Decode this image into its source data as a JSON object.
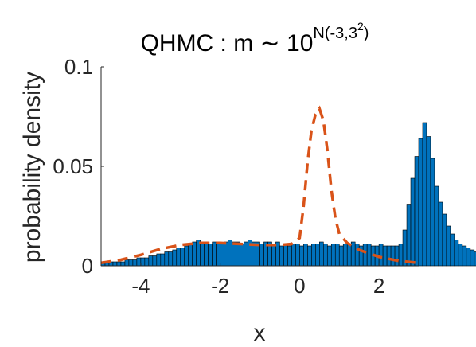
{
  "chart_data": {
    "type": "bar",
    "title": {
      "base": "QHMC : m ∼ 10",
      "superscript": "N(-3,3",
      "superscript_power": "2",
      "superscript_close": ")"
    },
    "xlabel": "x",
    "ylabel": "probability density",
    "xlim": [
      -5,
      3
    ],
    "ylim": [
      0,
      0.1
    ],
    "xticks": [
      -4,
      -2,
      0,
      2
    ],
    "xtick_labels": [
      "-4",
      "-2",
      "0",
      "2"
    ],
    "yticks": [
      0,
      0.05,
      0.1
    ],
    "ytick_labels": [
      "0",
      "0.05",
      "0.1"
    ],
    "grid": false,
    "bar_color": "#0072BD",
    "bar_edge_color": "#000000",
    "density_color": "#D95319",
    "density_style": "dashed",
    "bin_width": 0.1,
    "bin_start": -5,
    "histogram_values": [
      0.002,
      0.002,
      0.002,
      0.002,
      0.002,
      0.002,
      0.003,
      0.003,
      0.003,
      0.004,
      0.004,
      0.004,
      0.005,
      0.005,
      0.006,
      0.006,
      0.007,
      0.007,
      0.008,
      0.009,
      0.009,
      0.01,
      0.011,
      0.012,
      0.013,
      0.012,
      0.012,
      0.011,
      0.012,
      0.012,
      0.011,
      0.012,
      0.013,
      0.012,
      0.012,
      0.011,
      0.012,
      0.013,
      0.012,
      0.012,
      0.011,
      0.012,
      0.012,
      0.011,
      0.012,
      0.01,
      0.011,
      0.01,
      0.011,
      0.011,
      0.01,
      0.011,
      0.01,
      0.011,
      0.011,
      0.012,
      0.011,
      0.01,
      0.011,
      0.011,
      0.01,
      0.011,
      0.011,
      0.012,
      0.011,
      0.01,
      0.011,
      0.011,
      0.01,
      0.01,
      0.011,
      0.01,
      0.01,
      0.01,
      0.01,
      0.011,
      0.018,
      0.031,
      0.044,
      0.055,
      0.064,
      0.072,
      0.065,
      0.054,
      0.04,
      0.032,
      0.026,
      0.02,
      0.016,
      0.013,
      0.011,
      0.01,
      0.009,
      0.008,
      0.007,
      0.007,
      0.006,
      0.005,
      0.005,
      0.004,
      0.004,
      0.003,
      0.003,
      0.003,
      0.003,
      0.002,
      0.002,
      0.002,
      0.002,
      0.002,
      0.002,
      0.002,
      0.002,
      0.002,
      0.002,
      0.002,
      0.002,
      0.002,
      0.002,
      0.002
    ],
    "density_x": [
      -5,
      -4.5,
      -4,
      -3.5,
      -3,
      -2.5,
      -2,
      -1.5,
      -1,
      -0.5,
      -0.2,
      0,
      0.1,
      0.2,
      0.3,
      0.4,
      0.5,
      0.6,
      0.7,
      0.8,
      0.9,
      1.0,
      1.2,
      1.5,
      2,
      2.5,
      3
    ],
    "density_y": [
      0.0015,
      0.003,
      0.0055,
      0.0085,
      0.0105,
      0.0115,
      0.0115,
      0.011,
      0.0105,
      0.0105,
      0.011,
      0.014,
      0.03,
      0.052,
      0.068,
      0.076,
      0.079,
      0.073,
      0.058,
      0.038,
      0.024,
      0.016,
      0.0115,
      0.008,
      0.0045,
      0.0025,
      0.0015
    ]
  }
}
